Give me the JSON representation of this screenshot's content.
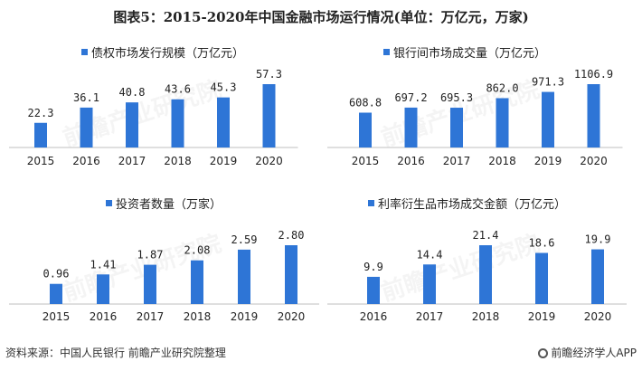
{
  "page": {
    "title": "图表5：2015-2020年中国金融市场运行情况(单位：万亿元，万家)",
    "source": "资料来源：中国人民银行 前瞻产业研究院整理",
    "publisher": "前瞻经济学人APP",
    "watermark": "前瞻产业研究院"
  },
  "colors": {
    "bar": "#2E75D6",
    "axis": "#BFBFBF"
  },
  "chart_data": [
    {
      "type": "bar",
      "title": "债权市场发行规模（万亿元）",
      "categories": [
        "2015",
        "2016",
        "2017",
        "2018",
        "2019",
        "2020"
      ],
      "values": [
        22.3,
        36.1,
        40.8,
        43.6,
        45.3,
        57.3
      ],
      "labels": [
        "22.3",
        "36.1",
        "40.8",
        "43.6",
        "45.3",
        "57.3"
      ],
      "ylim": [
        0,
        57.3
      ]
    },
    {
      "type": "bar",
      "title": "银行间市场成交量（万亿元）",
      "categories": [
        "2015",
        "2016",
        "2017",
        "2018",
        "2019",
        "2020"
      ],
      "values": [
        608.8,
        697.2,
        695.3,
        862.0,
        971.3,
        1106.9
      ],
      "labels": [
        "608.8",
        "697.2",
        "695.3",
        "862.0",
        "971.3",
        "1106.9"
      ],
      "ylim": [
        0,
        1106.9
      ]
    },
    {
      "type": "bar",
      "title": "投资者数量（万家）",
      "categories": [
        "2015",
        "2016",
        "2017",
        "2018",
        "2019",
        "2020"
      ],
      "values": [
        0.96,
        1.41,
        1.87,
        2.08,
        2.59,
        2.8
      ],
      "labels": [
        "0.96",
        "1.41",
        "1.87",
        "2.08",
        "2.59",
        "2.80"
      ],
      "ylim": [
        0,
        2.8
      ]
    },
    {
      "type": "bar",
      "title": "利率衍生品市场成交金额（万亿元）",
      "categories": [
        "2016",
        "2017",
        "2018",
        "2019",
        "2020"
      ],
      "values": [
        9.9,
        14.4,
        21.4,
        18.6,
        19.9
      ],
      "labels": [
        "9.9",
        "14.4",
        "21.4",
        "18.6",
        "19.9"
      ],
      "ylim": [
        0,
        21.4
      ]
    }
  ]
}
